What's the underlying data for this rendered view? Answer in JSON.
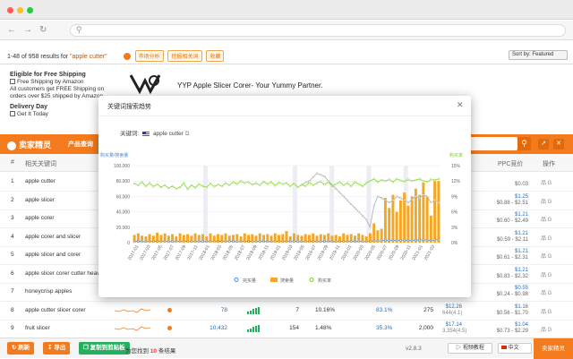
{
  "browser": {
    "window_dots": [
      "#ff5f57",
      "#ffbd2e",
      "#28c840"
    ],
    "nav_icons": [
      "back-icon",
      "forward-icon",
      "reload-icon",
      "search-icon"
    ]
  },
  "amazon": {
    "results_prefix": "1-48 of 958 results for",
    "query": "\"apple cutter\"",
    "tags": [
      "市场分析",
      "挖掘相关词",
      "收藏"
    ],
    "sort_label": "Sort by: Featured",
    "filters": {
      "free_shipping_heading": "Eligible for Free Shipping",
      "free_shipping_option": "Free Shipping by Amazon",
      "free_shipping_note_1": "All customers get FREE Shipping on",
      "free_shipping_note_2": "orders over $25 shipped by Amazon",
      "delivery_heading": "Delivery Day",
      "delivery_option": "Get It Today"
    },
    "banner_title": "YYP Apple Slicer Corer- Your Yummy Partner."
  },
  "plugin": {
    "brand": "卖家精灵",
    "product_menu": "产品查询",
    "header_icons": [
      "search-icon",
      "expand-icon",
      "minimize-icon",
      "close-icon"
    ],
    "columns": {
      "num": "#",
      "keyword": "相关关键词",
      "ppc": "PPC竞价",
      "ops": "操作"
    },
    "rows": [
      {
        "n": "1",
        "kw": "apple cutter",
        "ppc_a": "",
        "ppc_b": "$0.03"
      },
      {
        "n": "2",
        "kw": "apple slicer",
        "ppc_a": "$1.25",
        "ppc_b": "$0.88 - $2.51"
      },
      {
        "n": "3",
        "kw": "apple corer",
        "ppc_a": "$1.21",
        "ppc_b": "$0.60 - $2.49"
      },
      {
        "n": "4",
        "kw": "apple corer and slicer",
        "ppc_a": "$1.21",
        "ppc_b": "$0.59 - $2.11"
      },
      {
        "n": "5",
        "kw": "apple slicer and corer",
        "ppc_a": "$1.21",
        "ppc_b": "$0.61 - $2.31"
      },
      {
        "n": "6",
        "kw": "apple slicer corer cutter heavy d",
        "ppc_a": "$1.21",
        "ppc_b": "$0.83 - $2.32"
      },
      {
        "n": "7",
        "kw": "honeycrisp apples",
        "ppc_a": "$0.55",
        "ppc_b": "$0.24 - $0.98"
      },
      {
        "n": "8",
        "kw": "apple cutter slicer corer",
        "search": "78",
        "mom": "7",
        "pct": "10.16%",
        "cr": "83.1%",
        "count": "275",
        "ppc_note": "$12.26",
        "ppc_note2": "644(4.1)",
        "ppc_a": "$1.16",
        "ppc_b": "$0.56 - $1.70"
      },
      {
        "n": "9",
        "kw": "fruit slicer",
        "search": "10,432",
        "mom": "154",
        "pct": "1.48%",
        "cr": "35.3%",
        "count": "2,000",
        "ppc_note": "$17.14",
        "ppc_note2": "3,354(4.5)",
        "ppc_a": "$1.04",
        "ppc_b": "$0.73 - $2.29"
      }
    ],
    "row_ops": "品 G"
  },
  "footer": {
    "refresh": "刷新",
    "export": "导出",
    "copy": "复制到剪贴板",
    "found_prefix": "为您找到",
    "found_count": "10",
    "found_suffix": "条结果",
    "version": "v2.8.3",
    "video": "视频教程",
    "lang": "中文",
    "promo": "卖家精灵"
  },
  "modal": {
    "title": "关键词搜索趋势",
    "kw_label": "关键词:",
    "kw_value": "apple cutter"
  },
  "chart_data": {
    "type": "bar",
    "left_axis_label": "购买量/搜索量",
    "right_axis_label": "购买率",
    "y_ticks": [
      "100,000",
      "80,000",
      "60,000",
      "40,000",
      "20,000",
      "0"
    ],
    "y2_ticks": [
      "15%",
      "12%",
      "9%",
      "6%",
      "3%",
      "0%"
    ],
    "ylim": [
      0,
      100000
    ],
    "y2lim": [
      0,
      15
    ],
    "x_tick_labels": [
      "2017-01",
      "2017-03",
      "2017-05",
      "2017-07",
      "2017-09",
      "2017-11",
      "2018-01",
      "2018-03",
      "2018-05",
      "2018-07",
      "2018-09",
      "2018-11",
      "2019-01",
      "2019-03",
      "2019-05",
      "2019-07",
      "2019-09",
      "2019-11",
      "2020-01",
      "2020-03",
      "2020-05",
      "2020-07",
      "2020-09",
      "2020-11",
      "2021-01",
      "2021-03"
    ],
    "legend": [
      "完买量",
      "搜索量",
      "购买率"
    ],
    "colors": {
      "bars": "#f5a623",
      "purchase": "#4a90e2",
      "rate": "#7ed321",
      "trend": "#aaaaaa"
    },
    "series": [
      {
        "name": "搜索量",
        "values": [
          10000,
          12000,
          9000,
          8000,
          11000,
          9000,
          13000,
          10000,
          12000,
          9000,
          11000,
          8000,
          12000,
          10000,
          11000,
          9000,
          12000,
          10000,
          11000,
          8000,
          12000,
          9000,
          11000,
          10000,
          12000,
          9000,
          10000,
          11000,
          8000,
          12000,
          10000,
          11000,
          9000,
          12000,
          10000,
          11000,
          9000,
          12000,
          10000,
          11000,
          15000,
          8000,
          12000,
          10000,
          9000,
          11000,
          10000,
          12000,
          9000,
          11000,
          10000,
          12000,
          9000,
          10000,
          8000,
          12000,
          10000,
          11000,
          9000,
          12000,
          10000,
          8000,
          12000,
          25000,
          16000,
          18000,
          58000,
          45000,
          62000,
          40000,
          55000,
          65000,
          48000,
          60000,
          70000,
          62000,
          78000,
          60000,
          35000,
          80000,
          80000
        ]
      },
      {
        "name": "完买量",
        "values": [
          1500,
          1800,
          1400,
          1300,
          1700,
          1400,
          1900,
          1500,
          1800,
          1400,
          1600,
          1300,
          1800,
          1500,
          1700,
          1400,
          1800,
          1500,
          1600,
          1300,
          1800,
          1400,
          1700,
          1500,
          1800,
          1400,
          1500,
          1600,
          1300,
          1800,
          1500,
          1600,
          1400,
          1800,
          1500,
          1600,
          1400,
          1800,
          1500,
          1600,
          2000,
          1300,
          1800,
          1500,
          1400,
          1600,
          1500,
          1800,
          1400,
          1600,
          1500,
          1800,
          1400,
          1500,
          1300,
          1800,
          1500,
          1600,
          1400,
          1800,
          1500,
          1300,
          1800,
          2500,
          2000,
          2200,
          3200,
          2800,
          3300,
          2600,
          3000,
          3300,
          2800,
          3100,
          3400,
          3200,
          3600,
          3100,
          2400,
          3700,
          3700
        ]
      },
      {
        "name": "购买率",
        "values": [
          11.5,
          11.2,
          11.8,
          11.0,
          11.6,
          10.9,
          11.4,
          10.8,
          11.2,
          10.6,
          11.0,
          10.5,
          10.8,
          11.6,
          10.4,
          11.2,
          10.7,
          11.4,
          11.0,
          10.8,
          11.5,
          10.9,
          11.3,
          11.0,
          11.6,
          11.2,
          11.8,
          11.4,
          12.0,
          11.6,
          11.8,
          11.3,
          11.6,
          11.2,
          11.9,
          11.4,
          11.8,
          11.1,
          11.7,
          11.4,
          11.6,
          11.0,
          11.5,
          10.8,
          11.3,
          11.0,
          11.7,
          11.2,
          11.6,
          11.9,
          11.3,
          11.8,
          11.0,
          11.4,
          11.8,
          11.2,
          11.6,
          11.0,
          11.8,
          11.4,
          11.0,
          11.6,
          12.0,
          12.4,
          11.8,
          12.2,
          12.0,
          12.3,
          11.8,
          12.4,
          12.1,
          11.9,
          12.3,
          12.0,
          12.2,
          12.4,
          12.0,
          11.8,
          12.3,
          12.2,
          12.4
        ]
      },
      {
        "name": "trend",
        "values": [
          null,
          null,
          null,
          null,
          null,
          null,
          null,
          null,
          null,
          null,
          null,
          null,
          null,
          null,
          null,
          null,
          null,
          null,
          null,
          null,
          null,
          null,
          null,
          null,
          null,
          null,
          null,
          null,
          null,
          null,
          null,
          null,
          null,
          null,
          null,
          null,
          null,
          null,
          null,
          null,
          null,
          null,
          null,
          null,
          75000,
          78000,
          80000,
          85000,
          90000,
          88000,
          86000,
          80000,
          75000,
          70000,
          65000,
          60000,
          55000,
          50000,
          45000,
          40000,
          35000,
          30000,
          20000,
          48000,
          60000,
          58000,
          55000,
          52000,
          55000,
          60000,
          58000,
          55000,
          52000,
          56000,
          60000,
          58000,
          62000,
          60000,
          52000,
          55000,
          52000
        ]
      }
    ],
    "highlight_bands": [
      0.23,
      0.52,
      0.64,
      0.76,
      0.88
    ]
  }
}
